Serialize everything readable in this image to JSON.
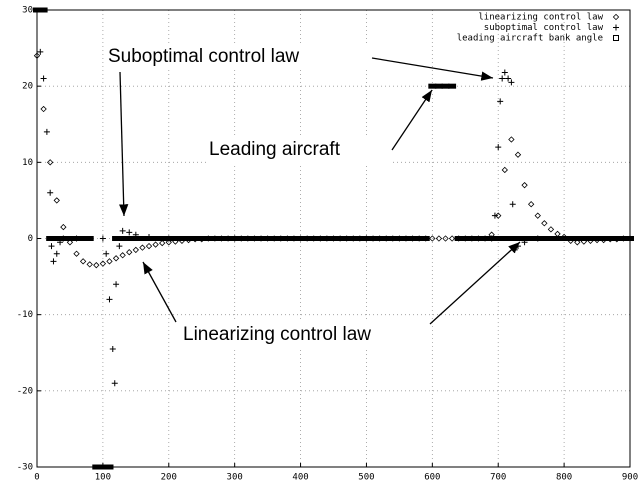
{
  "chart_data": {
    "type": "scatter",
    "xlim": [
      0,
      900
    ],
    "xticks": [
      0,
      100,
      200,
      300,
      400,
      500,
      600,
      700,
      800,
      900
    ],
    "ylim": [
      -30,
      30
    ],
    "yticks": [
      -30,
      -20,
      -10,
      0,
      10,
      20,
      30
    ],
    "grid": true,
    "legend": "upper right",
    "annotations": [
      "Suboptimal control law",
      "Leading aircraft",
      "Linearizing control law"
    ],
    "series": [
      {
        "name": "linearizing control law",
        "color": "#000000",
        "marker": "diamond",
        "x": [
          0,
          10,
          20,
          30,
          40,
          50,
          60,
          70,
          80,
          90,
          100,
          110,
          120,
          130,
          140,
          150,
          160,
          170,
          180,
          190,
          200,
          210,
          220,
          230,
          240,
          250,
          260,
          270,
          280,
          290,
          300,
          310,
          320,
          330,
          340,
          350,
          360,
          370,
          380,
          390,
          400,
          410,
          420,
          430,
          440,
          450,
          460,
          470,
          480,
          490,
          500,
          510,
          520,
          530,
          540,
          550,
          560,
          570,
          580,
          590,
          600,
          610,
          620,
          630,
          640,
          650,
          660,
          670,
          680,
          690,
          700,
          710,
          720,
          730,
          740,
          750,
          760,
          770,
          780,
          790,
          800,
          810,
          820,
          830,
          840,
          850,
          860,
          870,
          880,
          890,
          900
        ],
        "values": [
          24,
          17,
          10,
          5,
          1.5,
          -0.5,
          -2,
          -3,
          -3.4,
          -3.5,
          -3.3,
          -3,
          -2.6,
          -2.2,
          -1.8,
          -1.5,
          -1.2,
          -1,
          -0.8,
          -0.6,
          -0.5,
          -0.4,
          -0.3,
          -0.2,
          -0.1,
          -0.1,
          0,
          0,
          0,
          0,
          0,
          0,
          0,
          0,
          0,
          0,
          0,
          0,
          0,
          0,
          0,
          0,
          0,
          0,
          0,
          0,
          0,
          0,
          0,
          0,
          0,
          0,
          0,
          0,
          0,
          0,
          0,
          0,
          0,
          0,
          0,
          0,
          0,
          0,
          0,
          0,
          0,
          0,
          0,
          0.5,
          3,
          9,
          13,
          11,
          7,
          4.5,
          3,
          2,
          1.2,
          0.6,
          0.2,
          -0.3,
          -0.5,
          -0.4,
          -0.3,
          -0.2,
          -0.2,
          -0.1,
          -0.1,
          0,
          0
        ]
      },
      {
        "name": "suboptimal control law",
        "color": "#000000",
        "marker": "plus",
        "x": [
          5,
          10,
          15,
          20,
          22,
          25,
          30,
          35,
          40,
          60,
          100,
          105,
          110,
          115,
          118,
          120,
          125,
          130,
          140,
          150,
          170,
          200,
          300,
          500,
          690,
          695,
          700,
          703,
          706,
          710,
          715,
          720,
          722,
          725,
          730,
          740,
          760,
          900
        ],
        "values": [
          24.5,
          21,
          14,
          6,
          -1,
          -3,
          -2,
          -0.5,
          0,
          0,
          0,
          -2,
          -8,
          -14.5,
          -19,
          -6,
          -1,
          1,
          0.8,
          0.5,
          0.2,
          0,
          0,
          0,
          0,
          3,
          12,
          18,
          21,
          21.8,
          21,
          20.5,
          4.5,
          -1.5,
          -1,
          -0.5,
          0,
          0
        ]
      },
      {
        "name": "leading aircraft bank angle",
        "color": "#000000",
        "marker": "square",
        "x": [
          0,
          10,
          20,
          30,
          40,
          50,
          60,
          70,
          80,
          90,
          100,
          110,
          120,
          130,
          140,
          150,
          160,
          170,
          180,
          190,
          200,
          210,
          220,
          230,
          240,
          250,
          260,
          270,
          280,
          290,
          300,
          310,
          320,
          330,
          340,
          350,
          360,
          370,
          380,
          390,
          400,
          410,
          420,
          430,
          440,
          450,
          460,
          470,
          480,
          490,
          500,
          510,
          520,
          530,
          540,
          550,
          560,
          570,
          580,
          590,
          600,
          610,
          620,
          630,
          640,
          650,
          660,
          670,
          680,
          690,
          700,
          710,
          720,
          730,
          740,
          750,
          760,
          770,
          780,
          790,
          800,
          810,
          820,
          830,
          840,
          850,
          860,
          870,
          880,
          890,
          900
        ],
        "values": [
          30,
          30,
          0,
          0,
          0,
          0,
          0,
          0,
          0,
          -30,
          -30,
          -30,
          0,
          0,
          0,
          0,
          0,
          0,
          0,
          0,
          0,
          0,
          0,
          0,
          0,
          0,
          0,
          0,
          0,
          0,
          0,
          0,
          0,
          0,
          0,
          0,
          0,
          0,
          0,
          0,
          0,
          0,
          0,
          0,
          0,
          0,
          0,
          0,
          0,
          0,
          0,
          0,
          0,
          0,
          0,
          0,
          0,
          0,
          0,
          0,
          20,
          20,
          20,
          20,
          0,
          0,
          0,
          0,
          0,
          0,
          0,
          0,
          0,
          0,
          0,
          0,
          0,
          0,
          0,
          0,
          0,
          0,
          0,
          0,
          0,
          0,
          0,
          0,
          0,
          0,
          0
        ]
      }
    ]
  }
}
